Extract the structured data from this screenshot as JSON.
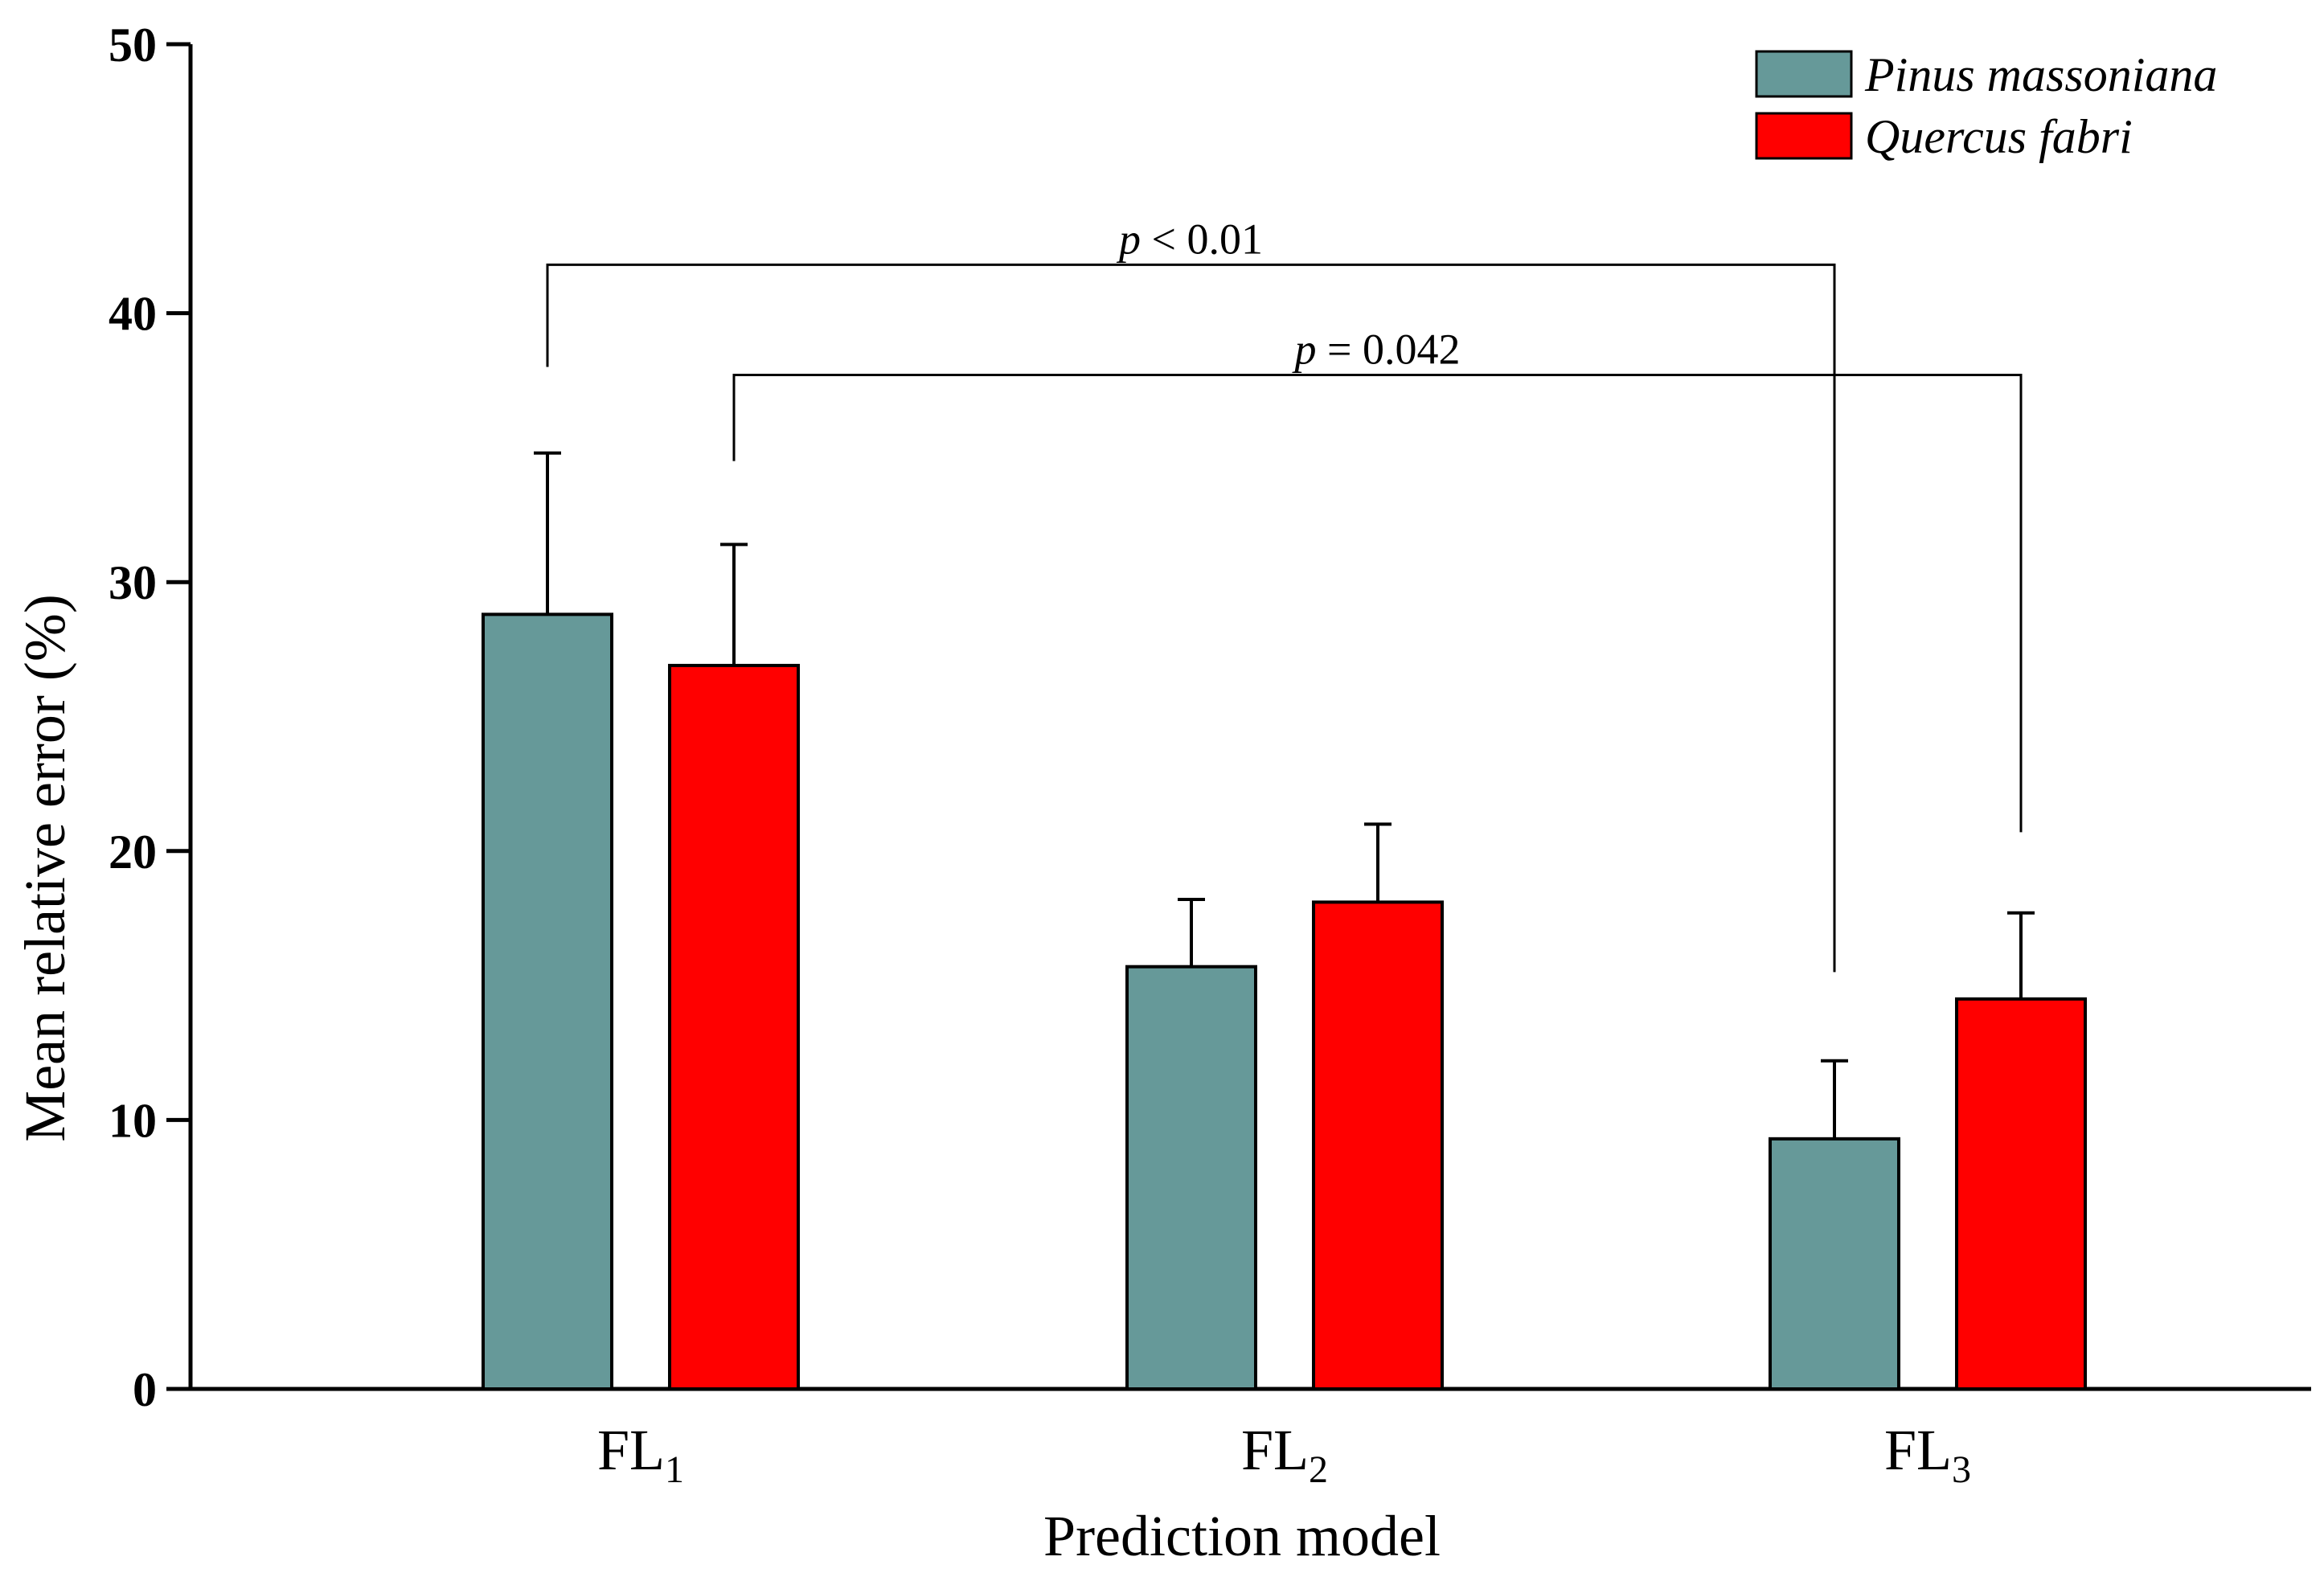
{
  "chart_data": {
    "type": "bar",
    "title": "",
    "xlabel": "Prediction model",
    "ylabel": "Mean relative error (%)",
    "ylim": [
      0,
      50
    ],
    "yticks": [
      "0",
      "10",
      "20",
      "30",
      "40",
      "50"
    ],
    "categories": [
      {
        "base": "FL",
        "sub": "1"
      },
      {
        "base": "FL",
        "sub": "2"
      },
      {
        "base": "FL",
        "sub": "3"
      }
    ],
    "series": [
      {
        "name": "Pinus massoniana",
        "color": "#669999",
        "values": [
          28.8,
          15.7,
          9.3
        ],
        "errors": [
          6.0,
          2.5,
          2.9
        ]
      },
      {
        "name": "Quercus fabri",
        "color": "#ff0000",
        "values": [
          26.9,
          18.1,
          14.5
        ],
        "errors": [
          4.5,
          2.9,
          3.2
        ]
      }
    ],
    "legend_position": "top-right",
    "significance": [
      {
        "italic": "p",
        "text": " < 0.01",
        "from": {
          "category": 0,
          "series": 0
        },
        "to": {
          "category": 2,
          "series": 0
        },
        "from_value": 38.0,
        "to_value": 15.5,
        "bracket_value": 41.8
      },
      {
        "italic": "p",
        "text": " = 0.042",
        "from": {
          "category": 0,
          "series": 1
        },
        "to": {
          "category": 2,
          "series": 1
        },
        "from_value": 34.5,
        "to_value": 20.7,
        "bracket_value": 37.7
      }
    ]
  }
}
